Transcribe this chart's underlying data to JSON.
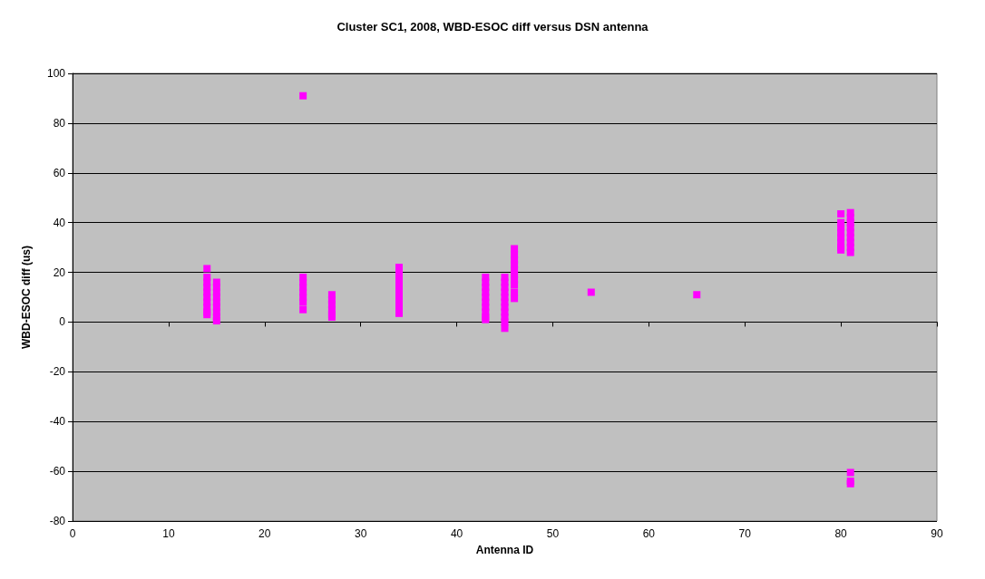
{
  "chart_data": {
    "type": "scatter",
    "title": "Cluster SC1, 2008, WBD-ESOC diff versus DSN antenna",
    "xlabel": "Antenna ID",
    "ylabel": "WBD-ESOC diff (us)",
    "x": [
      14,
      14,
      14,
      14,
      14,
      14,
      14,
      14,
      14,
      14,
      15,
      15,
      15,
      15,
      15,
      15,
      15,
      15,
      15,
      24,
      24,
      24,
      24,
      24,
      24,
      24,
      24,
      27,
      27,
      27,
      27,
      27,
      27,
      34,
      34,
      34,
      34,
      34,
      34,
      34,
      34,
      34,
      34,
      43,
      43,
      43,
      43,
      43,
      43,
      43,
      43,
      43,
      43,
      45,
      45,
      45,
      45,
      45,
      45,
      45,
      45,
      45,
      45,
      45,
      46,
      46,
      46,
      46,
      46,
      46,
      46,
      46,
      46,
      46,
      54,
      65,
      80,
      80,
      80,
      80,
      80,
      80,
      80,
      80,
      81,
      81,
      81,
      81,
      81,
      81,
      81,
      81,
      81,
      81,
      81,
      81
    ],
    "series": [
      {
        "color": "#ff00ff",
        "values": [
          21.5,
          18,
          16,
          14,
          12,
          10,
          8,
          6,
          4,
          3,
          16,
          14,
          12,
          10,
          8,
          6,
          4,
          2,
          0.5,
          91,
          18,
          16,
          14,
          12,
          10,
          8,
          5,
          11,
          9,
          7,
          5,
          3,
          2,
          22,
          20,
          18,
          16,
          14,
          12,
          10,
          8,
          6,
          3.5,
          18,
          16,
          14,
          12,
          10,
          8,
          6,
          4,
          2,
          1,
          18,
          16,
          14,
          12,
          10,
          8,
          6,
          4,
          2,
          0,
          -2.5,
          29.5,
          27,
          25,
          23,
          21,
          19,
          17,
          15,
          12,
          9.5,
          12,
          11,
          43.5,
          40,
          38,
          36,
          34,
          32,
          30,
          29,
          44,
          42,
          40,
          38,
          36,
          34,
          32,
          30,
          28,
          -60.5,
          -64,
          -65
        ]
      }
    ],
    "xlim": [
      0,
      90
    ],
    "xticks": [
      0,
      10,
      20,
      30,
      40,
      50,
      60,
      70,
      80,
      90
    ],
    "ylim": [
      -80,
      100
    ],
    "yticks": [
      -80,
      -60,
      -40,
      -20,
      0,
      20,
      40,
      60,
      80,
      100
    ],
    "grid": "y",
    "marker": "square"
  }
}
